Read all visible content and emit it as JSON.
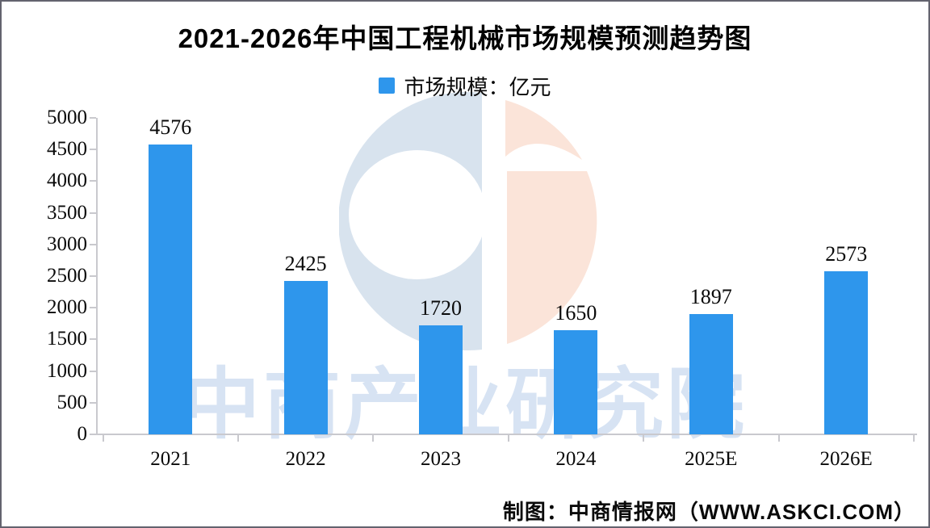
{
  "title": "2021-2026年中国工程机械市场规模预测趋势图",
  "legend": {
    "label": "市场规模：亿元"
  },
  "footer": "制图：中商情报网（WWW.ASKCI.COM）",
  "watermark": {
    "text": "中商产业研究院",
    "logo": "askci-circle-logo"
  },
  "chart_data": {
    "type": "bar",
    "title": "2021-2026年中国工程机械市场规模预测趋势图",
    "categories": [
      "2021",
      "2022",
      "2023",
      "2024",
      "2025E",
      "2026E"
    ],
    "series": [
      {
        "name": "市场规模：亿元",
        "values": [
          4576,
          2425,
          1720,
          1650,
          1897,
          2573
        ]
      }
    ],
    "xlabel": "",
    "ylabel": "亿元",
    "ylim": [
      0,
      5000
    ],
    "yticks": [
      0,
      500,
      1000,
      1500,
      2000,
      2500,
      3000,
      3500,
      4000,
      4500,
      5000
    ],
    "grid": false,
    "legend_position": "top-center",
    "bar_color": "#2e96ec",
    "value_labels_shown": true
  },
  "colors": {
    "bar": "#2e96ec",
    "axis": "#c9c9ce",
    "text": "#0a0a0a",
    "watermark_text": "#b7cdea",
    "logo_blue": "#d8e3ee",
    "logo_peach": "#fbe4d9",
    "border": "#63636e",
    "background": "#ffffff"
  }
}
